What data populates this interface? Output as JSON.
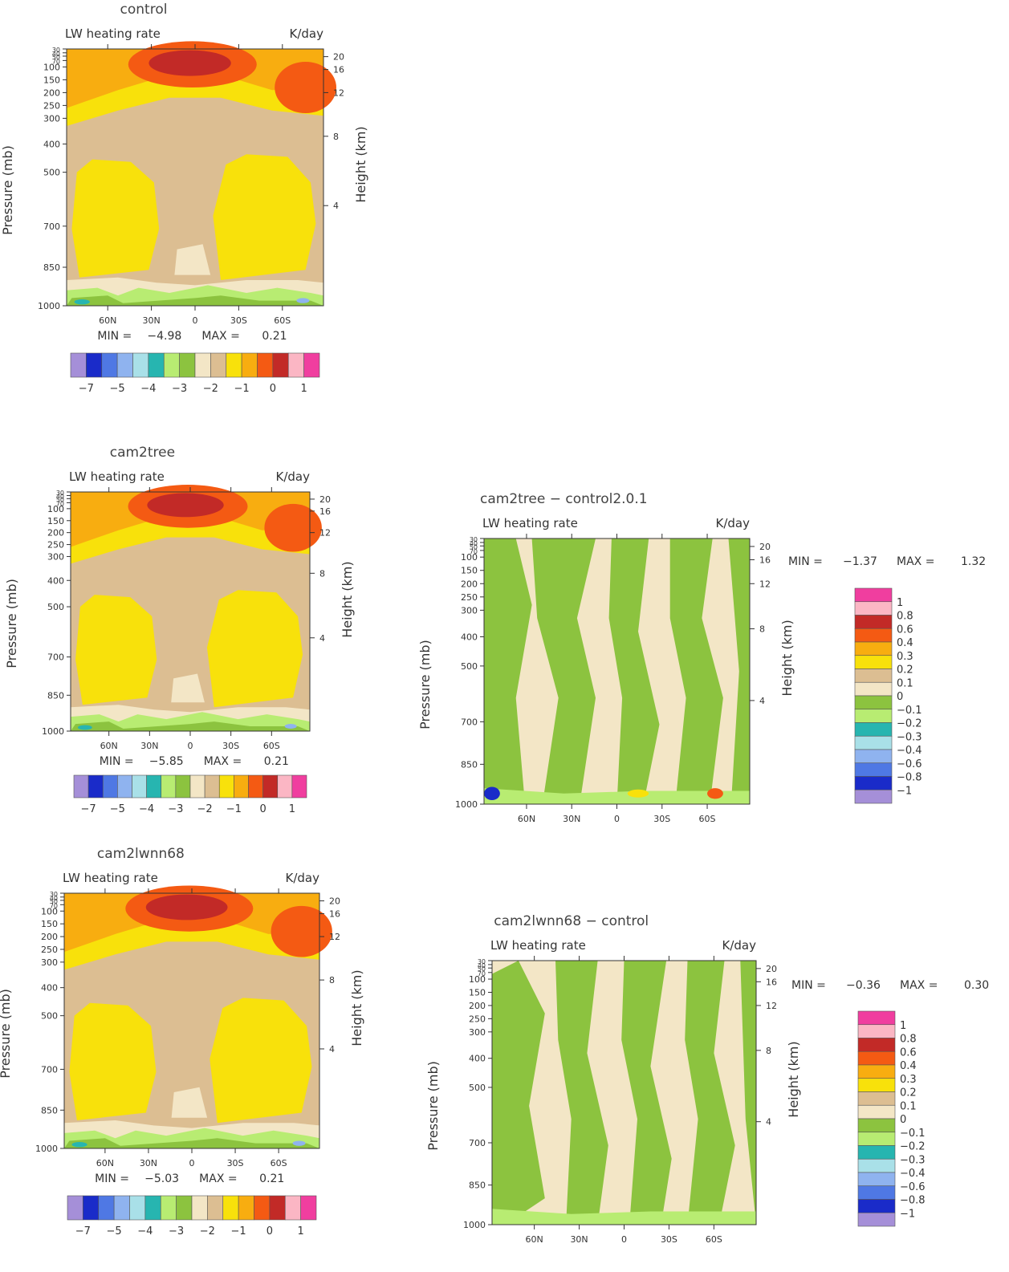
{
  "chart_data": [
    {
      "type": "heatmap",
      "title": "control",
      "subtitle_left": "LW heating rate",
      "subtitle_right": "K/day",
      "ylabel": "Pressure (mb)",
      "ylabel_right": "Height (km)",
      "x_ticks": [
        "60N",
        "30N",
        "0",
        "30S",
        "60S"
      ],
      "y_ticks": [
        "30",
        "40",
        "50",
        "70",
        "100",
        "150",
        "200",
        "250",
        "300",
        "400",
        "500",
        "700",
        "850",
        "1000"
      ],
      "y_ticks_right": [
        "20",
        "16",
        "12",
        "8",
        "4"
      ],
      "min_label": "MIN =",
      "min_value": "−4.98",
      "max_label": "MAX =",
      "max_value": "0.21",
      "colorbar_labels": [
        "−7",
        "−5",
        "−4",
        "−3",
        "−2",
        "−1",
        "0",
        "1"
      ],
      "colors": [
        "#a58fd8",
        "#1a2bc9",
        "#4f78e4",
        "#8fb3ef",
        "#a9e0e8",
        "#27b5b0",
        "#b8ec72",
        "#8cc33f",
        "#f3e6c6",
        "#dcbe92",
        "#f8e10b",
        "#f8ad10",
        "#f45a13",
        "#c22a27",
        "#fbb6c4",
        "#f03e9f"
      ]
    },
    {
      "type": "heatmap",
      "title": "cam2tree",
      "subtitle_left": "LW heating rate",
      "subtitle_right": "K/day",
      "ylabel": "Pressure (mb)",
      "ylabel_right": "Height (km)",
      "x_ticks": [
        "60N",
        "30N",
        "0",
        "30S",
        "60S"
      ],
      "y_ticks": [
        "30",
        "40",
        "50",
        "70",
        "100",
        "150",
        "200",
        "250",
        "300",
        "400",
        "500",
        "700",
        "850",
        "1000"
      ],
      "y_ticks_right": [
        "20",
        "16",
        "12",
        "8",
        "4"
      ],
      "min_label": "MIN =",
      "min_value": "−5.85",
      "max_label": "MAX =",
      "max_value": "0.21",
      "colorbar_labels": [
        "−7",
        "−5",
        "−4",
        "−3",
        "−2",
        "−1",
        "0",
        "1"
      ],
      "colors": [
        "#a58fd8",
        "#1a2bc9",
        "#4f78e4",
        "#8fb3ef",
        "#a9e0e8",
        "#27b5b0",
        "#b8ec72",
        "#8cc33f",
        "#f3e6c6",
        "#dcbe92",
        "#f8e10b",
        "#f8ad10",
        "#f45a13",
        "#c22a27",
        "#fbb6c4",
        "#f03e9f"
      ]
    },
    {
      "type": "heatmap",
      "title": "cam2lwnn68",
      "subtitle_left": "LW heating rate",
      "subtitle_right": "K/day",
      "ylabel": "Pressure (mb)",
      "ylabel_right": "Height (km)",
      "x_ticks": [
        "60N",
        "30N",
        "0",
        "30S",
        "60S"
      ],
      "y_ticks": [
        "30",
        "40",
        "50",
        "70",
        "100",
        "150",
        "200",
        "250",
        "300",
        "400",
        "500",
        "700",
        "850",
        "1000"
      ],
      "y_ticks_right": [
        "20",
        "16",
        "12",
        "8",
        "4"
      ],
      "min_label": "MIN =",
      "min_value": "−5.03",
      "max_label": "MAX =",
      "max_value": "0.21",
      "colorbar_labels": [
        "−7",
        "−5",
        "−4",
        "−3",
        "−2",
        "−1",
        "0",
        "1"
      ],
      "colors": [
        "#a58fd8",
        "#1a2bc9",
        "#4f78e4",
        "#8fb3ef",
        "#a9e0e8",
        "#27b5b0",
        "#b8ec72",
        "#8cc33f",
        "#f3e6c6",
        "#dcbe92",
        "#f8e10b",
        "#f8ad10",
        "#f45a13",
        "#c22a27",
        "#fbb6c4",
        "#f03e9f"
      ]
    },
    {
      "type": "heatmap",
      "title": "cam2tree − control2.0.1",
      "subtitle_left": "LW heating rate",
      "subtitle_right": "K/day",
      "ylabel": "Pressure (mb)",
      "ylabel_right": "Height (km)",
      "x_ticks": [
        "60N",
        "30N",
        "0",
        "30S",
        "60S"
      ],
      "y_ticks": [
        "30",
        "40",
        "50",
        "70",
        "100",
        "150",
        "200",
        "250",
        "300",
        "400",
        "500",
        "700",
        "850",
        "1000"
      ],
      "y_ticks_right": [
        "20",
        "16",
        "12",
        "8",
        "4"
      ],
      "min_label": "MIN =",
      "min_value": "−1.37",
      "max_label": "MAX =",
      "max_value": "1.32",
      "colorbar_labels": [
        "1",
        "0.8",
        "0.6",
        "0.4",
        "0.3",
        "0.2",
        "0.1",
        "0",
        "−0.1",
        "−0.2",
        "−0.3",
        "−0.4",
        "−0.6",
        "−0.8",
        "−1"
      ],
      "colors": [
        "#f03e9f",
        "#fbb6c4",
        "#c22a27",
        "#f45a13",
        "#f8ad10",
        "#f8e10b",
        "#dcbe92",
        "#f3e6c6",
        "#8cc33f",
        "#b8ec72",
        "#27b5b0",
        "#a9e0e8",
        "#8fb3ef",
        "#4f78e4",
        "#1a2bc9",
        "#a58fd8"
      ]
    },
    {
      "type": "heatmap",
      "title": "cam2lwnn68 − control",
      "subtitle_left": "LW heating rate",
      "subtitle_right": "K/day",
      "ylabel": "Pressure (mb)",
      "ylabel_right": "Height (km)",
      "x_ticks": [
        "60N",
        "30N",
        "0",
        "30S",
        "60S"
      ],
      "y_ticks": [
        "30",
        "40",
        "50",
        "70",
        "100",
        "150",
        "200",
        "250",
        "300",
        "400",
        "500",
        "700",
        "850",
        "1000"
      ],
      "y_ticks_right": [
        "20",
        "16",
        "12",
        "8",
        "4"
      ],
      "min_label": "MIN =",
      "min_value": "−0.36",
      "max_label": "MAX =",
      "max_value": "0.30",
      "colorbar_labels": [
        "1",
        "0.8",
        "0.6",
        "0.4",
        "0.3",
        "0.2",
        "0.1",
        "0",
        "−0.1",
        "−0.2",
        "−0.3",
        "−0.4",
        "−0.6",
        "−0.8",
        "−1"
      ],
      "colors": [
        "#f03e9f",
        "#fbb6c4",
        "#c22a27",
        "#f45a13",
        "#f8ad10",
        "#f8e10b",
        "#dcbe92",
        "#f3e6c6",
        "#8cc33f",
        "#b8ec72",
        "#27b5b0",
        "#a9e0e8",
        "#8fb3ef",
        "#4f78e4",
        "#1a2bc9",
        "#a58fd8"
      ]
    }
  ]
}
